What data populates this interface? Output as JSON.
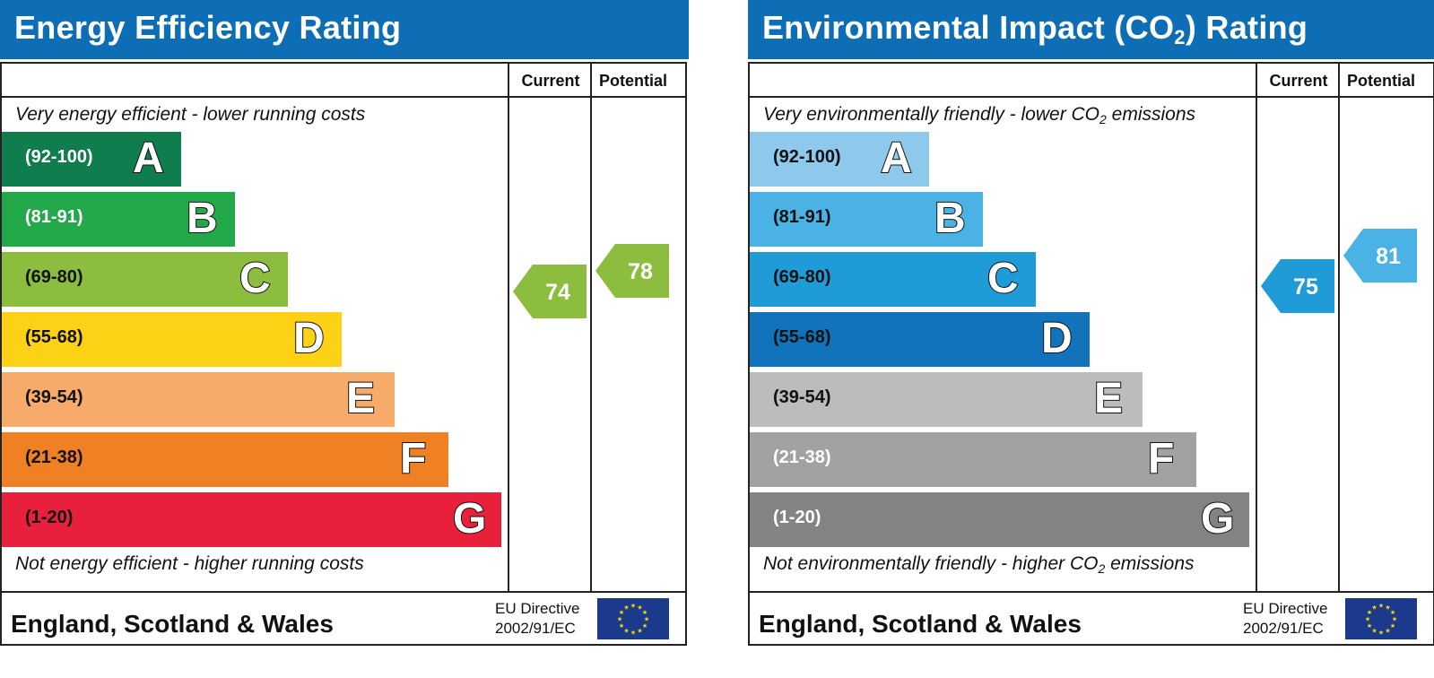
{
  "chart_data": [
    {
      "type": "bar",
      "title": "Energy Efficiency Rating",
      "columns": [
        "Current",
        "Potential"
      ],
      "top_note": "Very energy efficient - lower running costs",
      "bottom_note": "Not energy efficient - higher running costs",
      "categories": [
        "A",
        "B",
        "C",
        "D",
        "E",
        "F",
        "G"
      ],
      "ranges": [
        "(92-100)",
        "(81-91)",
        "(69-80)",
        "(55-68)",
        "(39-54)",
        "(21-38)",
        "(1-20)"
      ],
      "band_colors": [
        "#0f7d4d",
        "#23a94a",
        "#8cbd3f",
        "#fdd116",
        "#f6ab6a",
        "#ef8023",
        "#e8203b"
      ],
      "range_text_colors": [
        "#ffffff",
        "#ffffff",
        "#111111",
        "#111111",
        "#111111",
        "#111111",
        "#111111"
      ],
      "current": 74,
      "potential": 78,
      "current_color": "#8cbd3f",
      "potential_color": "#8cbd3f",
      "footer": "England, Scotland & Wales",
      "directive_line1": "EU Directive",
      "directive_line2": "2002/91/EC"
    },
    {
      "type": "bar",
      "title": "Environmental Impact (CO2) Rating",
      "title_main": "Environmental Impact (CO",
      "title_sub": "2",
      "title_end": ") Rating",
      "columns": [
        "Current",
        "Potential"
      ],
      "top_note_main": "Very environmentally friendly - lower CO",
      "top_note_sub": "2",
      "top_note_end": " emissions",
      "bottom_note_main": "Not environmentally friendly - higher CO",
      "bottom_note_sub": "2",
      "bottom_note_end": " emissions",
      "categories": [
        "A",
        "B",
        "C",
        "D",
        "E",
        "F",
        "G"
      ],
      "ranges": [
        "(92-100)",
        "(81-91)",
        "(69-80)",
        "(55-68)",
        "(39-54)",
        "(21-38)",
        "(1-20)"
      ],
      "band_colors": [
        "#8ec9ec",
        "#4bb2e5",
        "#1f9cd7",
        "#1073bc",
        "#bdbcbc",
        "#a2a2a2",
        "#838383"
      ],
      "range_text_colors": [
        "#111111",
        "#111111",
        "#111111",
        "#111111",
        "#111111",
        "#ffffff",
        "#ffffff"
      ],
      "current": 75,
      "potential": 81,
      "current_color": "#1f9cd7",
      "potential_color": "#4bb2e5",
      "footer": "England, Scotland & Wales",
      "directive_line1": "EU Directive",
      "directive_line2": "2002/91/EC"
    }
  ]
}
